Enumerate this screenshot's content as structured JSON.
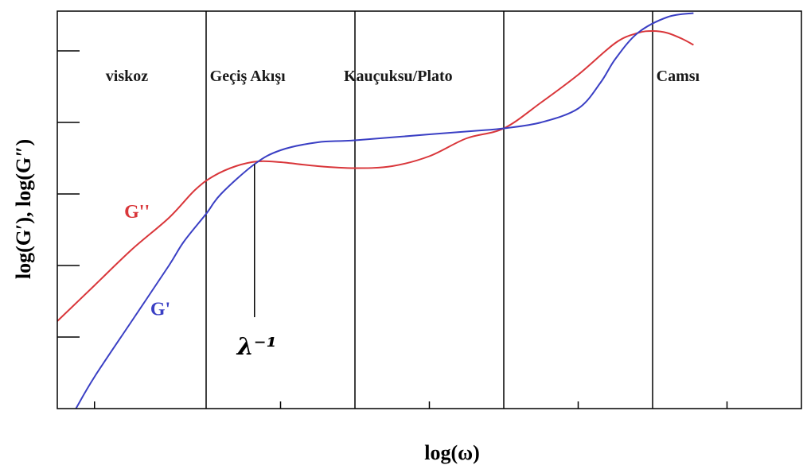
{
  "chart_data": {
    "type": "line",
    "xlabel": "log(ω)",
    "ylabel": "log(G′), log(G″)",
    "xlim": [
      0,
      100
    ],
    "ylim": [
      0,
      100
    ],
    "grid": false,
    "region_boundaries": [
      20,
      40,
      60,
      80
    ],
    "x_ticks": [
      5,
      30,
      50,
      70,
      90
    ],
    "y_ticks": [
      18,
      36,
      54,
      72,
      90
    ],
    "regions": [
      {
        "name": "viskoz",
        "x": 6.5
      },
      {
        "name": "Geçiş Akışı",
        "x": 20.5
      },
      {
        "name": "Kauçuksu/Plato",
        "x": 38.5
      },
      {
        "name": "Camsı",
        "x": 80.5
      }
    ],
    "marker": {
      "label": "λ⁻¹",
      "x": 26.5,
      "y_top": 61.5,
      "y_bottom": 23
    },
    "series": [
      {
        "name": "G''",
        "color": "#d9363a",
        "label_pos": {
          "x": 9,
          "y": 48
        },
        "points": [
          [
            0,
            22
          ],
          [
            5,
            31
          ],
          [
            10,
            40
          ],
          [
            15,
            48
          ],
          [
            18.5,
            55
          ],
          [
            21,
            58.5
          ],
          [
            24,
            61
          ],
          [
            27,
            62.2
          ],
          [
            30,
            62
          ],
          [
            35,
            61
          ],
          [
            40,
            60.5
          ],
          [
            45,
            61
          ],
          [
            50,
            63.5
          ],
          [
            55,
            68
          ],
          [
            60,
            70.5
          ],
          [
            65,
            77
          ],
          [
            70,
            84
          ],
          [
            75,
            92
          ],
          [
            78,
            94.5
          ],
          [
            80,
            95
          ],
          [
            82,
            94.5
          ],
          [
            84,
            93
          ],
          [
            85.5,
            91.5
          ]
        ]
      },
      {
        "name": "G'",
        "color": "#3a3fc4",
        "label_pos": {
          "x": 12.5,
          "y": 23.5
        },
        "points": [
          [
            2.5,
            0
          ],
          [
            5,
            8
          ],
          [
            10,
            22
          ],
          [
            15,
            36
          ],
          [
            17,
            42
          ],
          [
            20,
            49
          ],
          [
            22,
            54
          ],
          [
            26.5,
            61.5
          ],
          [
            30,
            65
          ],
          [
            35,
            67
          ],
          [
            40,
            67.5
          ],
          [
            50,
            69
          ],
          [
            57,
            70
          ],
          [
            60,
            70.5
          ],
          [
            65,
            72
          ],
          [
            70,
            75.5
          ],
          [
            73,
            82
          ],
          [
            75,
            88
          ],
          [
            78,
            94.5
          ],
          [
            82,
            98.5
          ],
          [
            85.5,
            99.5
          ]
        ]
      }
    ]
  }
}
